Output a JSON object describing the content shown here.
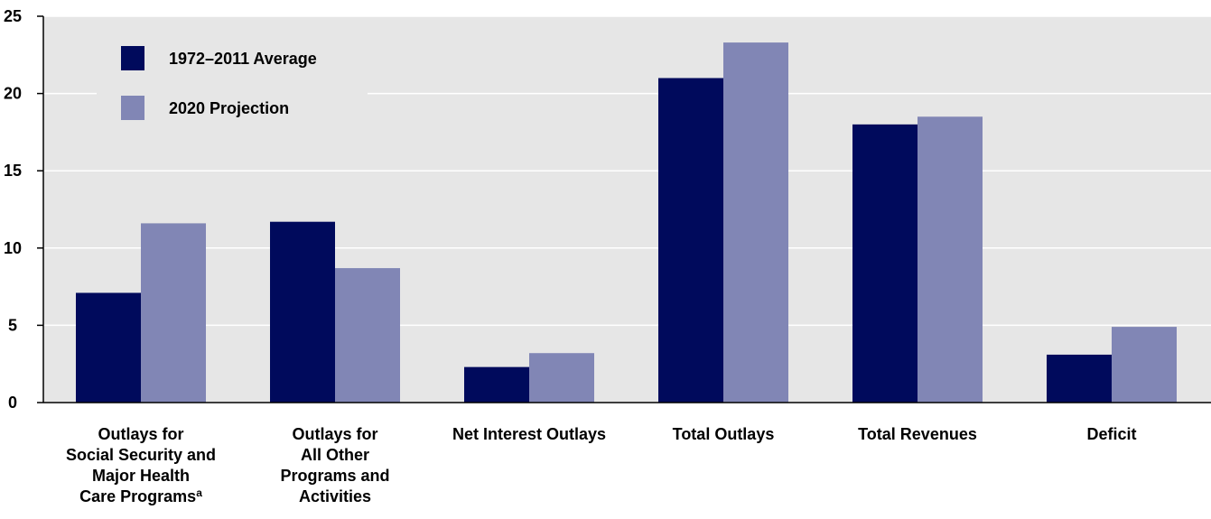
{
  "colors": {
    "plot_bg": "#e6e6e6",
    "grid": "#ffffff",
    "axis": "#000000",
    "series_1": "#000a5c",
    "series_2": "#8186b5"
  },
  "chart_data": {
    "type": "bar",
    "categories": [
      {
        "lines": [
          "Outlays for",
          "Social Security and",
          "Major Health",
          "Care Programs"
        ],
        "footnote": "a"
      },
      {
        "lines": [
          "Outlays for",
          "All Other",
          "Programs and",
          "Activities"
        ],
        "footnote": ""
      },
      {
        "lines": [
          "Net Interest Outlays"
        ],
        "footnote": ""
      },
      {
        "lines": [
          "Total Outlays"
        ],
        "footnote": ""
      },
      {
        "lines": [
          "Total Revenues"
        ],
        "footnote": ""
      },
      {
        "lines": [
          "Deficit"
        ],
        "footnote": ""
      }
    ],
    "series": [
      {
        "name": "1972–2011 Average",
        "values": [
          7.1,
          11.7,
          2.3,
          21.0,
          18.0,
          3.1
        ]
      },
      {
        "name": "2020 Projection",
        "values": [
          11.6,
          8.7,
          3.2,
          23.3,
          18.5,
          4.9
        ]
      }
    ],
    "yticks": [
      "0",
      "5",
      "10",
      "15",
      "20",
      "25"
    ],
    "ylim": [
      0,
      25
    ],
    "grid": true,
    "legend_position": "top-left"
  }
}
